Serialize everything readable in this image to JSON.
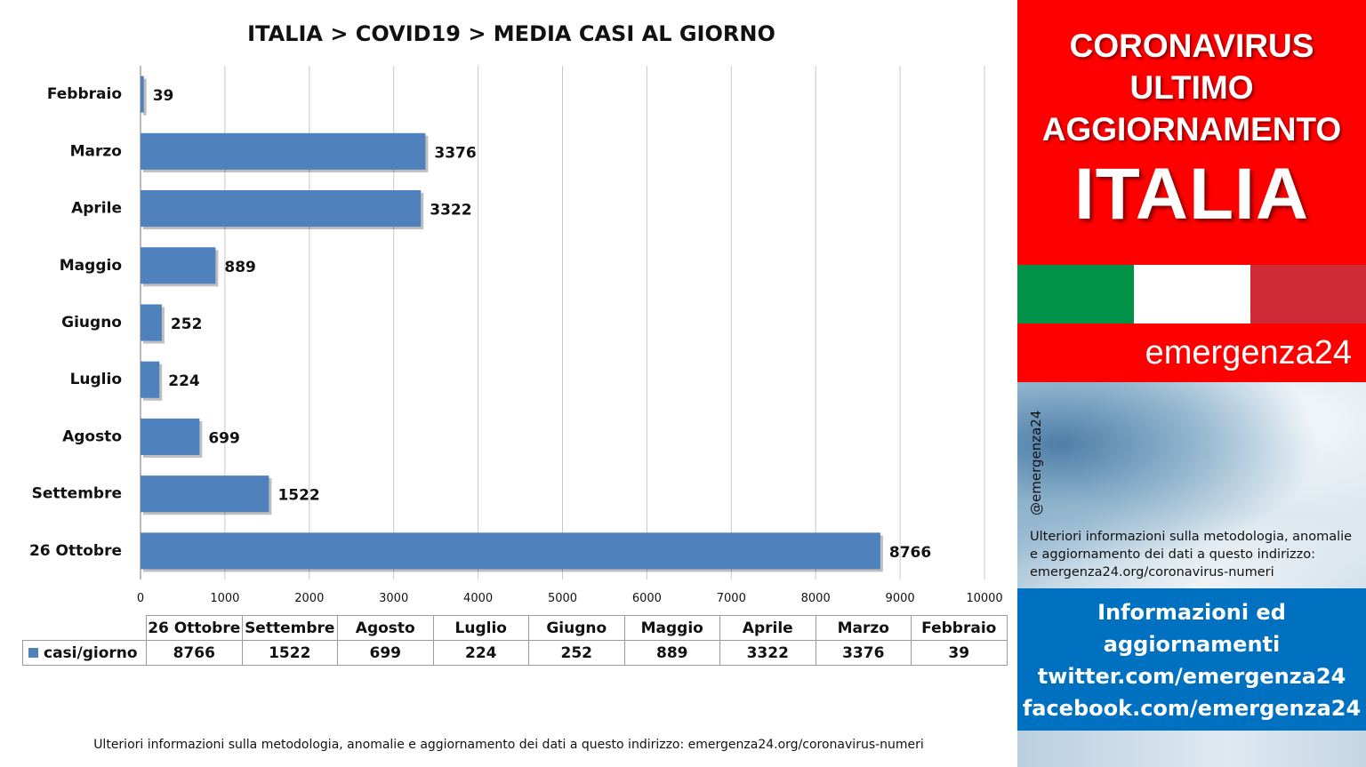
{
  "chart_data": {
    "type": "bar",
    "orientation": "horizontal",
    "title": "ITALIA >  COVID19 > MEDIA CASI AL GIORNO",
    "categories": [
      "Febbraio",
      "Marzo",
      "Aprile",
      "Maggio",
      "Giugno",
      "Luglio",
      "Agosto",
      "Settembre",
      "26 Ottobre"
    ],
    "series": [
      {
        "name": "casi/giorno",
        "values": [
          39,
          3376,
          3322,
          889,
          252,
          224,
          699,
          1522,
          8766
        ]
      }
    ],
    "xlim": [
      0,
      10000
    ],
    "x_ticks": [
      0,
      1000,
      2000,
      3000,
      4000,
      5000,
      6000,
      7000,
      8000,
      9000,
      10000
    ],
    "grid": true,
    "data_labels": true,
    "bar_color": "#4f81bd",
    "data_table": {
      "columns": [
        "26 Ottobre",
        "Settembre",
        "Agosto",
        "Luglio",
        "Giugno",
        "Maggio",
        "Aprile",
        "Marzo",
        "Febbraio"
      ],
      "series_label": "casi/giorno",
      "values": [
        "8766",
        "1522",
        "699",
        "224",
        "252",
        "889",
        "3322",
        "3376",
        "39"
      ]
    }
  },
  "footnote": "Ulteriori informazioni sulla metodologia, anomalie e aggiornamento dei dati a questo indirizzo: emergenza24.org/coronavirus-numeri",
  "side_panel": {
    "headline_lines": [
      "CORONAVIRUS",
      "ULTIMO",
      "AGGIORNAMENTO"
    ],
    "country": "ITALIA",
    "brand": "emergenza24",
    "handle": "@emergenza24",
    "method_note": "Ulteriori informazioni sulla metodologia, anomalie e aggiornamento dei dati a questo indirizzo: emergenza24.org/coronavirus-numeri",
    "info_lines": [
      "Informazioni ed",
      "aggiornamenti",
      "twitter.com/emergenza24",
      "facebook.com/emergenza24"
    ],
    "colors": {
      "red": "#ff0000",
      "blue": "#0070c0",
      "flag_green": "#009246",
      "flag_white": "#ffffff",
      "flag_red": "#ce2b37"
    }
  }
}
